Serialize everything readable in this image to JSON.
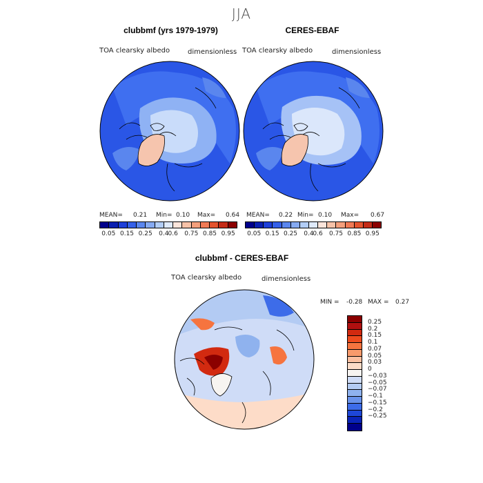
{
  "season": "JJA",
  "panels": {
    "model": {
      "title": "clubbmf (yrs 1979-1979)",
      "var_label": "TOA clearsky albedo",
      "units": "dimensionless",
      "mean_label": "MEAN=",
      "mean": "0.21",
      "min_label": "Min=",
      "min": "0.10",
      "max_label": "Max=",
      "max": "0.64"
    },
    "obs": {
      "title": "CERES-EBAF",
      "var_label": "TOA clearsky albedo",
      "units": "dimensionless",
      "mean_label": "MEAN=",
      "mean": "0.22",
      "min_label": "Min=",
      "min": "0.10",
      "max_label": "Max=",
      "max": "0.67"
    },
    "diff": {
      "title": "clubbmf - CERES-EBAF",
      "var_label": "TOA clearsky albedo",
      "units": "dimensionless",
      "min_label": "MIN =",
      "min": "-0.28",
      "max_label": "MAX =",
      "max": "0.27"
    }
  },
  "colorbar_abs": {
    "colors": [
      "#00008b",
      "#0a1fb0",
      "#1e3fd8",
      "#3560e8",
      "#5a86ee",
      "#86aaf2",
      "#b2cdf6",
      "#dfeafb",
      "#fbe4da",
      "#f7c2a8",
      "#f49f7c",
      "#f07a55",
      "#e4532d",
      "#c42b16",
      "#8b0000"
    ],
    "tick_labels": [
      "0.05",
      "0.15",
      "0.25",
      "0.4",
      "0.6",
      "0.75",
      "0.85",
      "0.95"
    ]
  },
  "colorbar_diff": {
    "colors": [
      "#8b0000",
      "#b01010",
      "#d22a10",
      "#ee4b1e",
      "#f6743f",
      "#f89a6c",
      "#fbbfa0",
      "#fddcc8",
      "#f7f4f1",
      "#cfdcf7",
      "#b3cbf3",
      "#8fb2ee",
      "#6a93eb",
      "#3d6ce9",
      "#1e47d8",
      "#0a24b8",
      "#00008b"
    ],
    "tick_labels": [
      "0.25",
      "0.2",
      "0.15",
      "0.1",
      "0.07",
      "0.05",
      "0.03",
      "0",
      "-0.03",
      "-0.05",
      "-0.07",
      "-0.1",
      "-0.15",
      "-0.2",
      "-0.25"
    ]
  }
}
